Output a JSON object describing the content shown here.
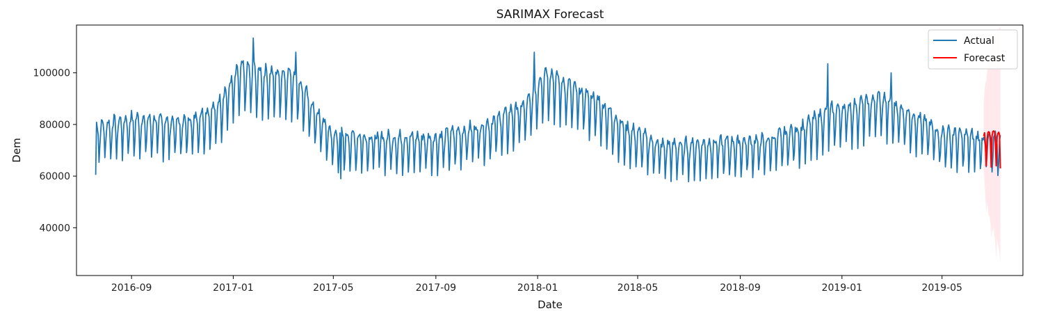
{
  "chart_data": {
    "type": "line",
    "title": "SARIMAX Forecast",
    "xlabel": "Date",
    "ylabel": "Dem",
    "x_range": [
      "2016-06-27",
      "2019-08-06"
    ],
    "ylim": [
      21500,
      118500
    ],
    "grid": false,
    "legend_position": "top-right",
    "x_ticks": [
      {
        "date": "2016-09-01",
        "label": "2016-09"
      },
      {
        "date": "2017-01-01",
        "label": "2017-01"
      },
      {
        "date": "2017-05-01",
        "label": "2017-05"
      },
      {
        "date": "2017-09-01",
        "label": "2017-09"
      },
      {
        "date": "2018-01-01",
        "label": "2018-01"
      },
      {
        "date": "2018-05-01",
        "label": "2018-05"
      },
      {
        "date": "2018-09-01",
        "label": "2018-09"
      },
      {
        "date": "2019-01-01",
        "label": "2019-01"
      },
      {
        "date": "2019-05-01",
        "label": "2019-05"
      }
    ],
    "y_ticks": [
      {
        "value": 40000,
        "label": "40000"
      },
      {
        "value": 60000,
        "label": "60000"
      },
      {
        "value": 80000,
        "label": "80000"
      },
      {
        "value": 100000,
        "label": "100000"
      }
    ],
    "series": [
      {
        "name": "Actual",
        "color": "#1f77b4",
        "start_date": "2016-07-20",
        "end_date": "2019-07-10",
        "weekday_pattern": [
          0.94,
          1.03,
          1.05,
          1.06,
          1.05,
          1.01,
          0.86
        ],
        "envelope": [
          [
            "2016-07-20",
            76000
          ],
          [
            "2016-09-01",
            79000
          ],
          [
            "2016-11-01",
            78000
          ],
          [
            "2016-12-10",
            83000
          ],
          [
            "2017-01-10",
            98000
          ],
          [
            "2017-02-10",
            96000
          ],
          [
            "2017-03-15",
            96000
          ],
          [
            "2017-04-10",
            82000
          ],
          [
            "2017-05-01",
            73000
          ],
          [
            "2017-07-01",
            72000
          ],
          [
            "2017-09-01",
            72000
          ],
          [
            "2017-11-01",
            77000
          ],
          [
            "2017-12-20",
            85000
          ],
          [
            "2018-01-10",
            97000
          ],
          [
            "2018-02-10",
            91000
          ],
          [
            "2018-03-15",
            86000
          ],
          [
            "2018-04-15",
            76000
          ],
          [
            "2018-06-01",
            69000
          ],
          [
            "2018-08-01",
            70000
          ],
          [
            "2018-10-01",
            71000
          ],
          [
            "2018-11-15",
            76000
          ],
          [
            "2018-12-15",
            82000
          ],
          [
            "2019-01-15",
            84000
          ],
          [
            "2019-02-15",
            87000
          ],
          [
            "2019-03-20",
            82000
          ],
          [
            "2019-05-01",
            74000
          ],
          [
            "2019-07-10",
            71000
          ]
        ],
        "annotated_points": [
          {
            "date": "2016-07-20",
            "value": 60500
          },
          {
            "date": "2017-01-25",
            "value": 113500
          },
          {
            "date": "2017-03-17",
            "value": 108000
          },
          {
            "date": "2017-05-10",
            "value": 59000
          },
          {
            "date": "2017-12-28",
            "value": 108000
          },
          {
            "date": "2018-12-15",
            "value": 103500
          },
          {
            "date": "2019-03-01",
            "value": 100000
          }
        ]
      },
      {
        "name": "Forecast",
        "color": "#ff0000",
        "dates": [
          "2019-06-20",
          "2019-06-21",
          "2019-06-22",
          "2019-06-23",
          "2019-06-24",
          "2019-06-25",
          "2019-06-26",
          "2019-06-27",
          "2019-06-28",
          "2019-06-29",
          "2019-06-30",
          "2019-07-01",
          "2019-07-02",
          "2019-07-03",
          "2019-07-04",
          "2019-07-05",
          "2019-07-06",
          "2019-07-07",
          "2019-07-08",
          "2019-07-09",
          "2019-07-10"
        ],
        "values": [
          75500,
          76800,
          72500,
          64000,
          74000,
          76800,
          77200,
          76800,
          73500,
          63500,
          75500,
          77300,
          77500,
          77000,
          73000,
          64000,
          75000,
          76500,
          77000,
          76000,
          63000
        ],
        "ci_lower": [
          63000,
          58000,
          52000,
          46000,
          50000,
          48000,
          44000,
          45000,
          42000,
          36000,
          40000,
          38000,
          40000,
          37000,
          33000,
          28000,
          36000,
          34000,
          32000,
          30000,
          26500
        ],
        "ci_upper": [
          88000,
          93000,
          96000,
          97000,
          100000,
          104000,
          107000,
          106000,
          108000,
          110000,
          112000,
          111000,
          113000,
          114000,
          115000,
          114000,
          116000,
          116500,
          117000,
          117500,
          118000
        ]
      }
    ]
  }
}
